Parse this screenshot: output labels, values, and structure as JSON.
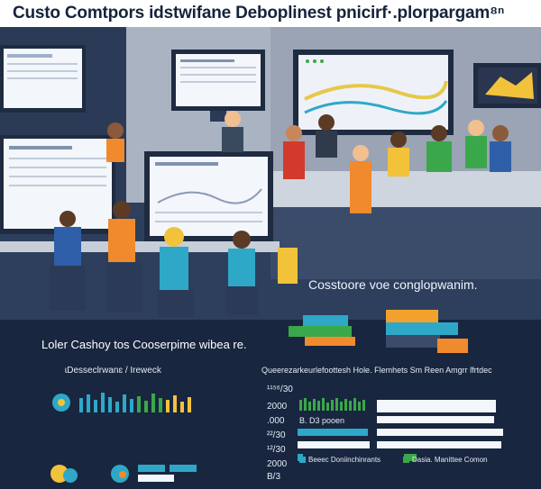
{
  "header": {
    "title": "Custo Comtpors idstwifane Deboplinest pnicirf·.plorpargam⁸ⁿ"
  },
  "scene": {
    "caption": "Cosstoore voe conglopwanim.",
    "colors": {
      "wall": "#aab3c2",
      "floor": "#2d3f5d",
      "screen": "#f3f6fb",
      "accent_teal": "#2fa8c8",
      "accent_orange": "#f08a2c"
    }
  },
  "panel_left": {
    "title": "Loler Cashoy tos Cooserpime wibea re.",
    "subtitle": "ɩDesseclrwanɛ / Ireweck"
  },
  "panel_right": {
    "subtitle": "Queerezarkeurlefoottesh Hole. Flemhets Sm Reen Amgrr ſfrtdec",
    "axis_labels": [
      "¹¹⁵⁶/30",
      "2000",
      ".000",
      "B. D3 pooen",
      "²²/30",
      "¹²/30",
      "2000",
      "B/3"
    ],
    "bar_label": "B. D3 pooen",
    "legend": [
      {
        "label": "Beeec Doniinchinrants",
        "color": "#2fa8c8"
      },
      {
        "label": "Dasia. Manittee Comon",
        "color": "#3aa84a"
      }
    ]
  }
}
